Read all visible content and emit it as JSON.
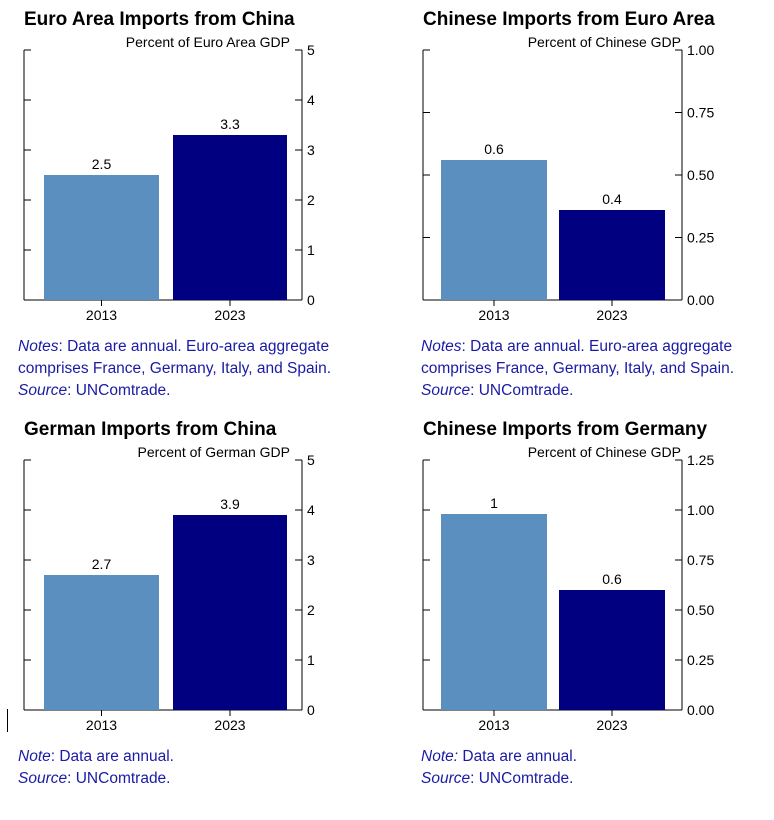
{
  "colors": {
    "bar_2013": "#5b8fc0",
    "bar_2023": "#000080",
    "note_text": "#1a1aa6",
    "axis": "#000000"
  },
  "chart_data": [
    {
      "type": "bar",
      "title": "Euro Area Imports from China",
      "ylabel": "Percent of Euro Area GDP",
      "categories": [
        "2013",
        "2023"
      ],
      "values": [
        2.5,
        3.3
      ],
      "data_labels": [
        "2.5",
        "3.3"
      ],
      "ylim": [
        0,
        5
      ],
      "yticks": [
        "0",
        "1",
        "2",
        "3",
        "4",
        "5"
      ],
      "yaxis_position": "right",
      "grid": false,
      "notes": {
        "note_label": "Notes",
        "note_text": ": Data are annual. Euro-area aggregate comprises France, Germany, Italy, and Spain.",
        "source_label": "Source",
        "source_text": ": UNComtrade."
      }
    },
    {
      "type": "bar",
      "title": "Chinese Imports from Euro Area",
      "ylabel": "Percent of Chinese GDP",
      "categories": [
        "2013",
        "2023"
      ],
      "values": [
        0.56,
        0.36
      ],
      "data_labels": [
        "0.6",
        "0.4"
      ],
      "ylim": [
        0,
        1.0
      ],
      "yticks": [
        "0.00",
        "0.25",
        "0.50",
        "0.75",
        "1.00"
      ],
      "yaxis_position": "right",
      "grid": false,
      "notes": {
        "note_label": "Notes",
        "note_text": ": Data are annual. Euro-area aggregate comprises France, Germany, Italy, and Spain.",
        "source_label": "Source",
        "source_text": ": UNComtrade."
      }
    },
    {
      "type": "bar",
      "title": "German Imports from China",
      "ylabel": "Percent of German GDP",
      "categories": [
        "2013",
        "2023"
      ],
      "values": [
        2.7,
        3.9
      ],
      "data_labels": [
        "2.7",
        "3.9"
      ],
      "ylim": [
        0,
        5
      ],
      "yticks": [
        "0",
        "1",
        "2",
        "3",
        "4",
        "5"
      ],
      "yaxis_position": "right",
      "grid": false,
      "notes": {
        "note_label": "Note",
        "note_text": ": Data are annual.",
        "source_label": "Source",
        "source_text": ": UNComtrade."
      }
    },
    {
      "type": "bar",
      "title": "Chinese Imports from Germany",
      "ylabel": "Percent of Chinese GDP",
      "categories": [
        "2013",
        "2023"
      ],
      "values": [
        0.98,
        0.6
      ],
      "data_labels": [
        "1",
        "0.6"
      ],
      "ylim": [
        0,
        1.25
      ],
      "yticks": [
        "0.00",
        "0.25",
        "0.50",
        "0.75",
        "1.00",
        "1.25"
      ],
      "yaxis_position": "right",
      "grid": false,
      "notes": {
        "note_label": "Note:",
        "note_text": " Data are annual.",
        "source_label": "Source",
        "source_text": ": UNComtrade."
      }
    }
  ]
}
